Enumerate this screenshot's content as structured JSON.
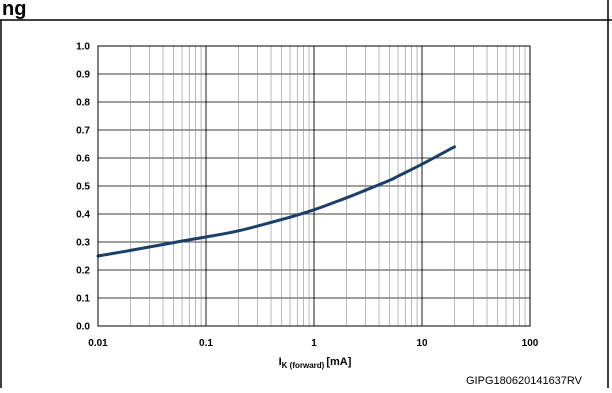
{
  "header": {
    "title_fragment": "ng"
  },
  "figure_code": "GIPG180620141637RV",
  "chart_data": {
    "type": "line",
    "title": "",
    "xscale": "log",
    "xlim": [
      0.01,
      100
    ],
    "ylim": [
      0.0,
      1.0
    ],
    "grid": true,
    "xlabel": {
      "main": "I",
      "sub": "K (forward)",
      "unit": "[mA]"
    },
    "ylabel": "",
    "x_ticks": [
      {
        "value": 0.01,
        "label": "0.01"
      },
      {
        "value": 0.1,
        "label": "0.1"
      },
      {
        "value": 1,
        "label": "1"
      },
      {
        "value": 10,
        "label": "10"
      },
      {
        "value": 100,
        "label": "100"
      }
    ],
    "y_ticks": [
      {
        "value": 0.0,
        "label": "0.0"
      },
      {
        "value": 0.1,
        "label": "0.1"
      },
      {
        "value": 0.2,
        "label": "0.2"
      },
      {
        "value": 0.3,
        "label": "0.3"
      },
      {
        "value": 0.4,
        "label": "0.4"
      },
      {
        "value": 0.5,
        "label": "0.5"
      },
      {
        "value": 0.6,
        "label": "0.6"
      },
      {
        "value": 0.7,
        "label": "0.7"
      },
      {
        "value": 0.8,
        "label": "0.8"
      },
      {
        "value": 0.9,
        "label": "0.9"
      },
      {
        "value": 1.0,
        "label": "1.0"
      }
    ],
    "series": [
      {
        "color": "#1b3f6b",
        "x": [
          0.01,
          0.02,
          0.05,
          0.1,
          0.2,
          0.5,
          1,
          2,
          3,
          5,
          6,
          10,
          20
        ],
        "y": [
          0.25,
          0.27,
          0.298,
          0.318,
          0.34,
          0.38,
          0.415,
          0.458,
          0.485,
          0.52,
          0.535,
          0.578,
          0.64
        ]
      }
    ]
  }
}
